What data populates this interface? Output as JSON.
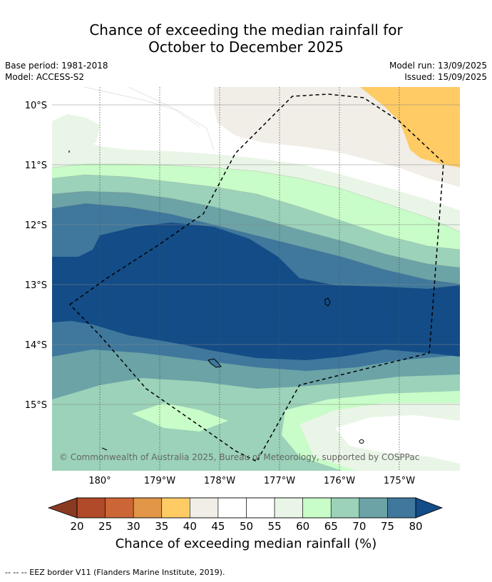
{
  "title_line1": "Chance of exceeding the median rainfall for",
  "title_line2": "October to December 2025",
  "base_period": "Base period: 1981-2018",
  "model": "Model: ACCESS-S2",
  "model_run": "Model run: 13/09/2025",
  "issued": "Issued: 15/09/2025",
  "lat_labels": [
    "10°S",
    "11°S",
    "12°S",
    "13°S",
    "14°S",
    "15°S"
  ],
  "lon_labels": [
    "180°",
    "179°W",
    "178°W",
    "177°W",
    "176°W",
    "175°W"
  ],
  "copyright": "© Commonwealth of Australia 2025, Bureau of Meteorology, supported by COSPPac",
  "colorbar": {
    "ticks": [
      "20",
      "25",
      "30",
      "35",
      "40",
      "45",
      "50",
      "55",
      "60",
      "65",
      "70",
      "75",
      "80"
    ],
    "label": "Chance of exceeding median rainfall (%)",
    "under_color": "#8b3a22",
    "over_color": "#134c86",
    "colors": [
      "#b04a28",
      "#cd6637",
      "#e19648",
      "#fecb65",
      "#f1ede7",
      "#ffffff",
      "#ffffff",
      "#e9f5e6",
      "#c8fcc8",
      "#9bd2b9",
      "#6ba3a6",
      "#3f789c"
    ]
  },
  "footnote": "-- -- -- EEZ border V11 (Flanders Marine Institute, 2019)."
}
